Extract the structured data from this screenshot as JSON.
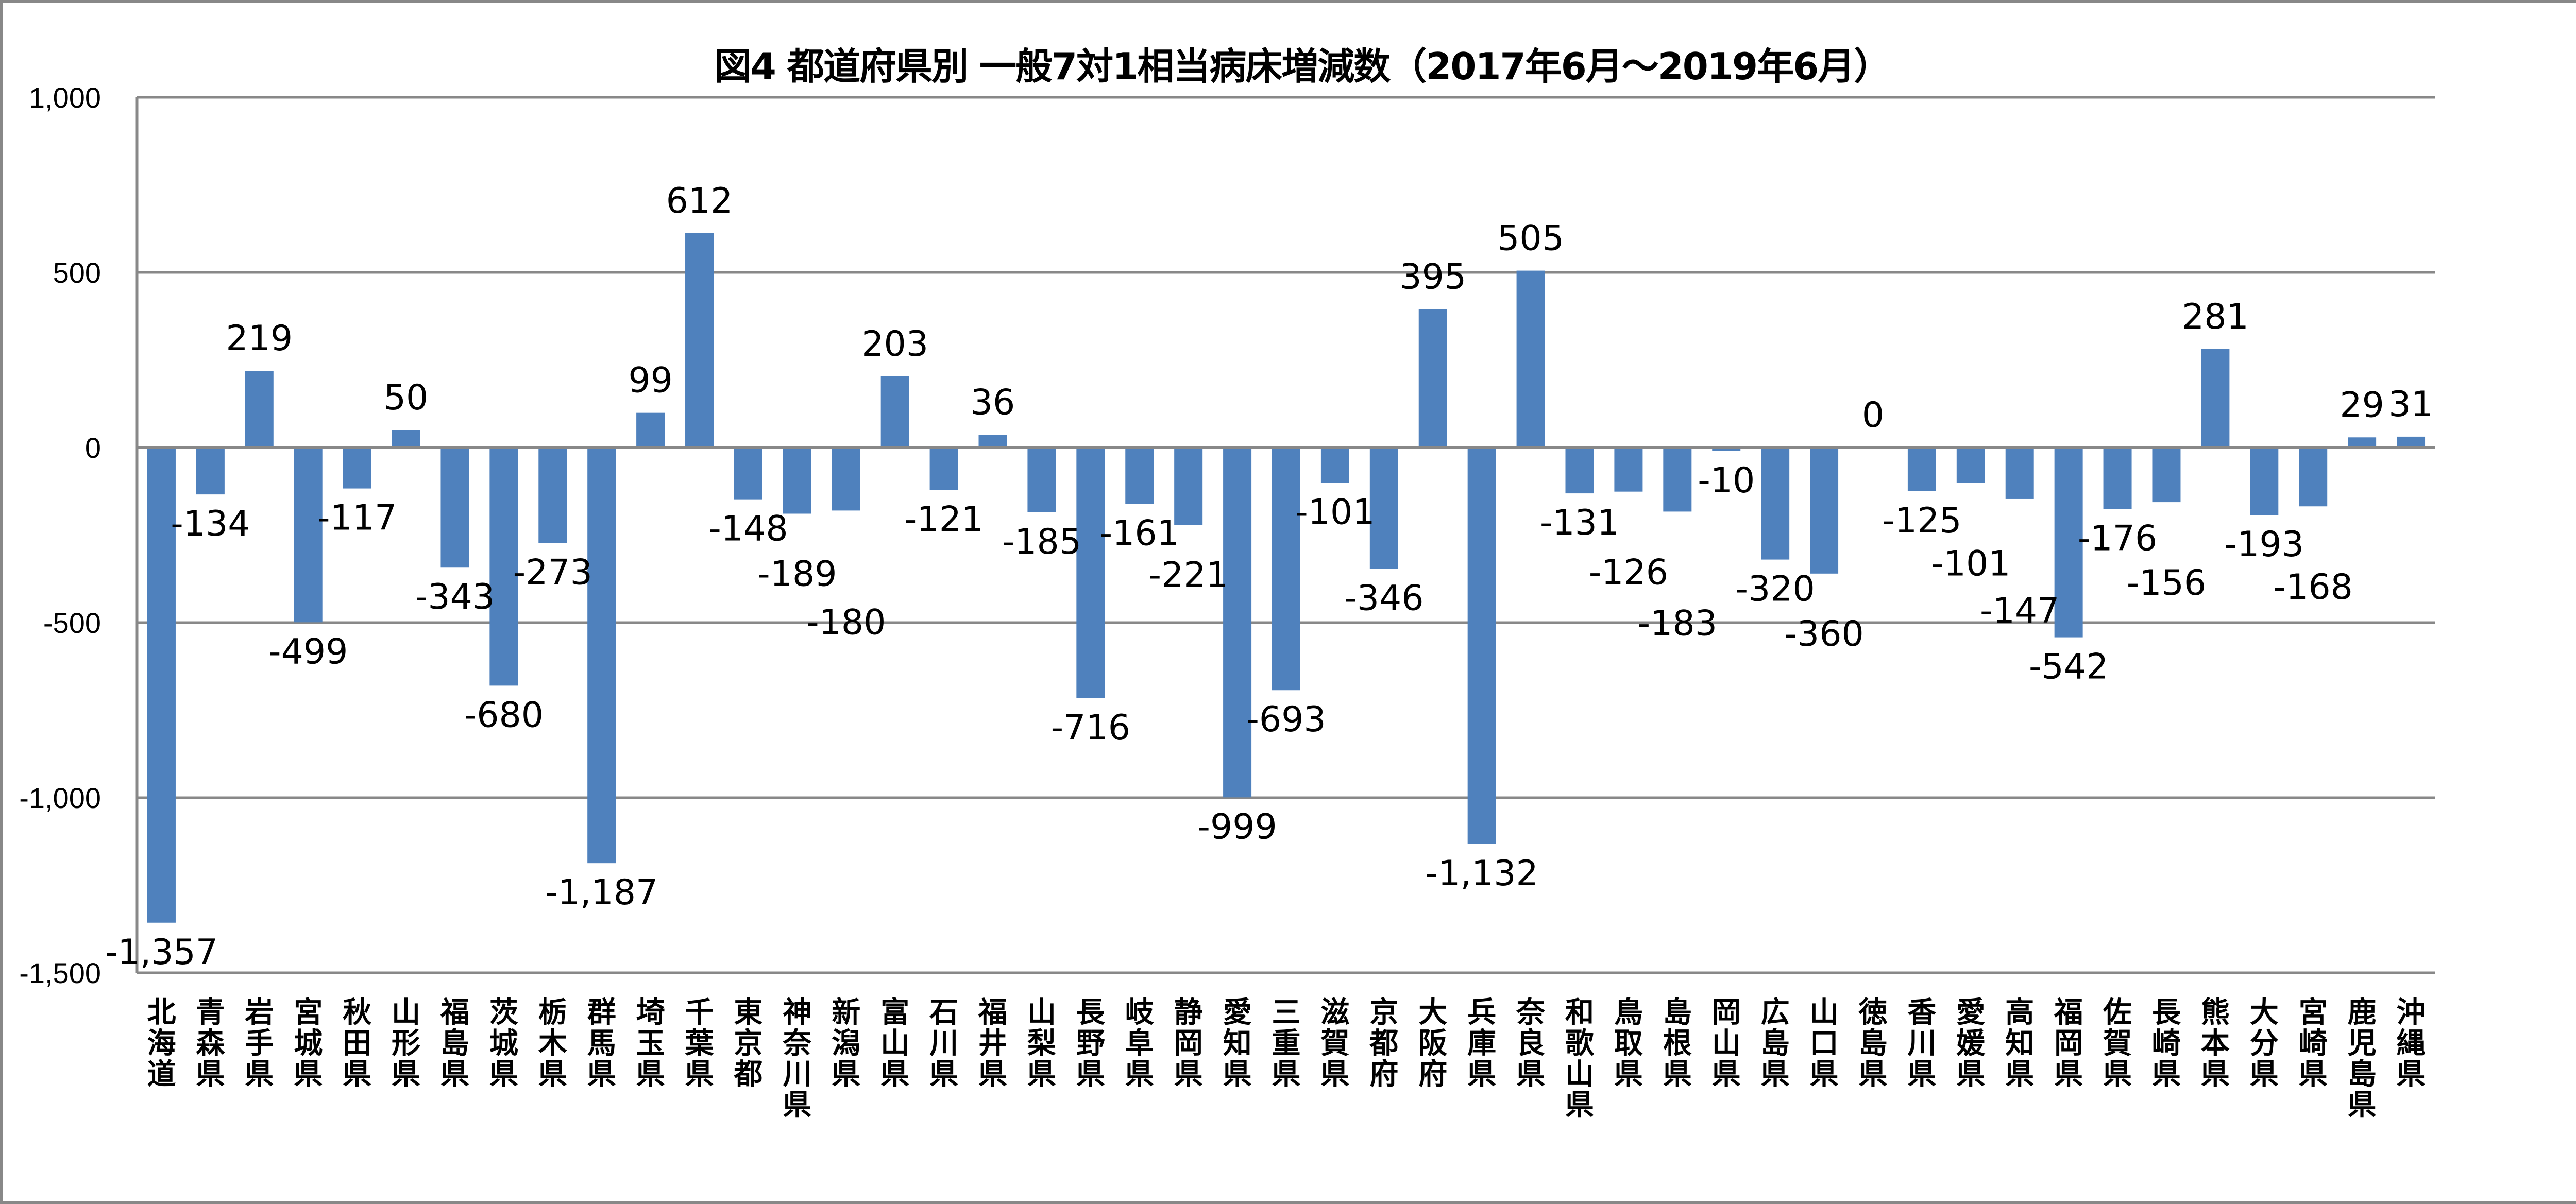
{
  "chart_data": {
    "type": "bar",
    "title": "図4  都道府県別  一般7対1相当病床増減数（2017年6月～2019年6月）",
    "xlabel": "",
    "ylabel": "",
    "ylim": [
      -1500,
      1000
    ],
    "yticks": [
      1000,
      500,
      0,
      -500,
      -1000,
      -1500
    ],
    "ytick_labels": [
      "1,000",
      "500",
      "0",
      "-500",
      "-1,000",
      "-1,500"
    ],
    "grid": true,
    "bar_color": "#4F81BD",
    "categories": [
      "北海道",
      "青森県",
      "岩手県",
      "宮城県",
      "秋田県",
      "山形県",
      "福島県",
      "茨城県",
      "栃木県",
      "群馬県",
      "埼玉県",
      "千葉県",
      "東京都",
      "神奈川県",
      "新潟県",
      "富山県",
      "石川県",
      "福井県",
      "山梨県",
      "長野県",
      "岐阜県",
      "静岡県",
      "愛知県",
      "三重県",
      "滋賀県",
      "京都府",
      "大阪府",
      "兵庫県",
      "奈良県",
      "和歌山県",
      "鳥取県",
      "島根県",
      "岡山県",
      "広島県",
      "山口県",
      "徳島県",
      "香川県",
      "愛媛県",
      "高知県",
      "福岡県",
      "佐賀県",
      "長崎県",
      "熊本県",
      "大分県",
      "宮崎県",
      "鹿児島県",
      "沖縄県"
    ],
    "values": [
      -1357,
      -134,
      219,
      -499,
      -117,
      50,
      -343,
      -680,
      -273,
      -1187,
      99,
      612,
      -148,
      -189,
      -180,
      203,
      -121,
      36,
      -185,
      -716,
      -161,
      -221,
      -999,
      -693,
      -101,
      -346,
      395,
      -1132,
      505,
      -131,
      -126,
      -183,
      -10,
      -320,
      -360,
      0,
      -125,
      -101,
      -147,
      -542,
      -176,
      -156,
      281,
      -193,
      -168,
      29,
      31
    ],
    "data_labels": [
      "-1,357",
      "-134",
      "219",
      "-499",
      "-117",
      "50",
      "-343",
      "-680",
      "-273",
      "-1,187",
      "99",
      "612",
      "-148",
      "-189",
      "-180",
      "203",
      "-121",
      "36",
      "-185",
      "-716",
      "-161",
      "-221",
      "-999",
      "-693",
      "-101",
      "-346",
      "395",
      "-1,132",
      "505",
      "-131",
      "-126",
      "-183",
      "-10",
      "-320",
      "-360",
      "0",
      "-125",
      "-101",
      "-147",
      "-542",
      "-176",
      "-156",
      "281",
      "-193",
      "-168",
      "29",
      "31"
    ]
  }
}
